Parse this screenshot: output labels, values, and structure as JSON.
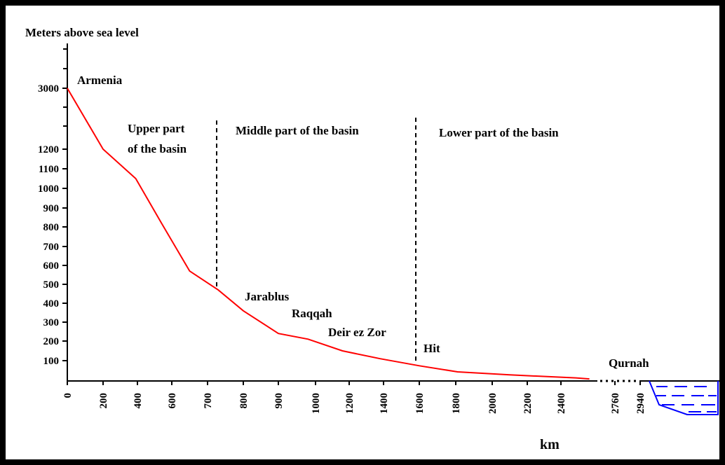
{
  "chart_data": {
    "type": "line",
    "title": "",
    "ylabel": "Meters above sea level",
    "xlabel": "km",
    "x_ticks": [
      "0",
      "200",
      "400",
      "600",
      "700",
      "800",
      "900",
      "1000",
      "1200",
      "1400",
      "1600",
      "1800",
      "2000",
      "2200",
      "2400",
      "2760",
      "2940"
    ],
    "y_ticks": [
      "100",
      "200",
      "300",
      "400",
      "500",
      "600",
      "700",
      "800",
      "900",
      "1000",
      "1100",
      "1200",
      "3000"
    ],
    "series": [
      {
        "points": [
          {
            "x": 0,
            "y": 3000
          },
          {
            "x": 200,
            "y": 1200
          },
          {
            "x": 390,
            "y": 1050
          },
          {
            "x": 540,
            "y": 820
          },
          {
            "x": 650,
            "y": 570
          },
          {
            "x": 730,
            "y": 470
          },
          {
            "x": 800,
            "y": 360
          },
          {
            "x": 900,
            "y": 240
          },
          {
            "x": 980,
            "y": 210
          },
          {
            "x": 1160,
            "y": 150
          },
          {
            "x": 1380,
            "y": 110
          },
          {
            "x": 1600,
            "y": 75
          },
          {
            "x": 1810,
            "y": 45
          },
          {
            "x": 2100,
            "y": 30
          },
          {
            "x": 2500,
            "y": 15
          },
          {
            "x": 2590,
            "y": 10
          }
        ]
      }
    ],
    "dividers_km": [
      730,
      1600
    ],
    "regions": [
      "Upper part\nof the basin",
      "Middle part of the basin",
      "Lower part of the basin"
    ],
    "annotations": [
      {
        "text": "Armenia",
        "x": 0,
        "y": 3000
      },
      {
        "text": "Jarablus",
        "x": 900,
        "y": 440
      },
      {
        "text": "Raqqah",
        "x": 1000,
        "y": 345
      },
      {
        "text": "Deir ez Zor",
        "x": 1150,
        "y": 250
      },
      {
        "text": "Hit",
        "x": 1600,
        "y": 160
      },
      {
        "text": "Qurnah",
        "x": 2940,
        "y": 100
      }
    ],
    "colors": {
      "line": "#ff0000",
      "water": "#0000ff",
      "axis": "#000000"
    }
  }
}
